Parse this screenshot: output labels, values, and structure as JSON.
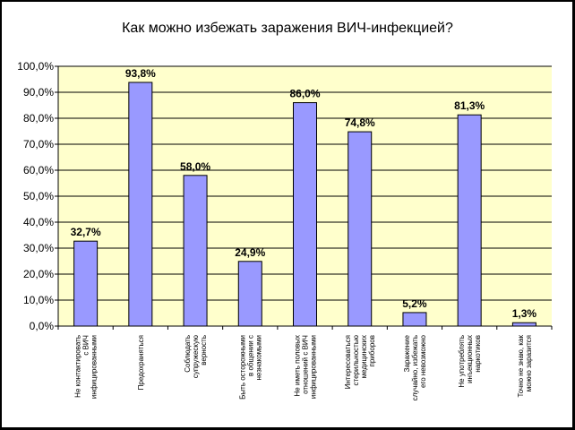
{
  "chart_data": {
    "type": "bar",
    "title": "Как можно избежать заражения ВИЧ-инфекцией?",
    "xlabel": "",
    "ylabel": "",
    "ylim": [
      0,
      100
    ],
    "ytick_step": 10,
    "grid": true,
    "legend": "none",
    "categories": [
      [
        "Не контактировать",
        "с ВИЧ",
        "инфицированными"
      ],
      [
        "Предохраняться"
      ],
      [
        "Соблюдать",
        "супружескую",
        "верность"
      ],
      [
        "Быть осторожными",
        "в общении с",
        "незнакомыми"
      ],
      [
        "Не иметь половых",
        "отношений с ВИЧ",
        "инфицированными"
      ],
      [
        "Интересоваться",
        "стерильностью",
        "медицинских",
        "приборов"
      ],
      [
        "Заражение",
        "случайно, избежать",
        "его невозможно"
      ],
      [
        "Не употреблять",
        "инъекционных",
        "наркотиков"
      ],
      [
        "Точно не знаю, как",
        "можно заразится"
      ]
    ],
    "values": [
      32.7,
      93.8,
      58.0,
      24.9,
      86.0,
      74.8,
      5.2,
      81.3,
      1.3
    ],
    "value_labels": [
      "32,7%",
      "93,8%",
      "58,0%",
      "24,9%",
      "86,0%",
      "74,8%",
      "5,2%",
      "81,3%",
      "1,3%"
    ],
    "colors": {
      "background": "#ffffff",
      "plot_area": "#ffffcc",
      "bar_fill": "#9999ff",
      "bar_stroke": "#000000",
      "gridline": "#000000",
      "outer_frame": "#000000"
    }
  }
}
